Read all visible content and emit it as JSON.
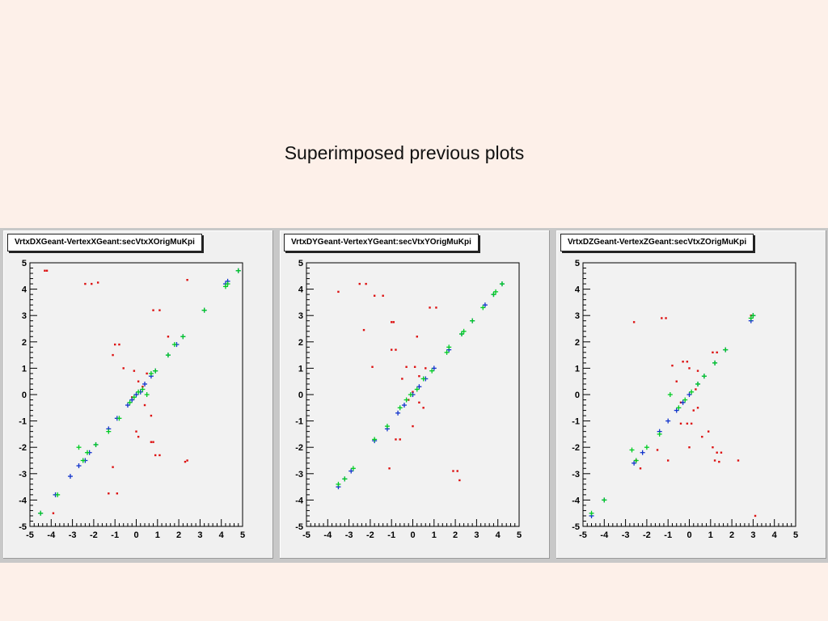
{
  "slide": {
    "title": "Superimposed previous plots"
  },
  "colors": {
    "background": "#fdf0e9",
    "frame": "#f2f2f2",
    "red": "#dd1111",
    "green": "#00cc22",
    "blue": "#1133cc"
  },
  "chart_data": [
    {
      "type": "scatter",
      "title": "VrtxDXGeant-VertexXGeant:secVtxXOrigMuKpi",
      "xlim": [
        -5,
        5
      ],
      "ylim": [
        -5,
        5
      ],
      "x_ticks": [
        -5,
        -4,
        -3,
        -2,
        -1,
        0,
        1,
        2,
        3,
        4,
        5
      ],
      "y_ticks": [
        -5,
        -4,
        -3,
        -2,
        -1,
        0,
        1,
        2,
        3,
        4,
        5
      ],
      "series": [
        {
          "color": "red",
          "points": [
            [
              -4.3,
              4.7
            ],
            [
              -4.2,
              4.7
            ],
            [
              -2.4,
              4.2
            ],
            [
              -2.1,
              4.2
            ],
            [
              -1.8,
              4.25
            ],
            [
              2.4,
              4.35
            ],
            [
              0.8,
              3.2
            ],
            [
              1.1,
              3.2
            ],
            [
              -1.0,
              1.9
            ],
            [
              -0.8,
              1.9
            ],
            [
              1.5,
              2.2
            ],
            [
              -1.1,
              1.5
            ],
            [
              -0.6,
              1.0
            ],
            [
              -0.1,
              0.9
            ],
            [
              0.5,
              0.8
            ],
            [
              0.1,
              0.5
            ],
            [
              0.3,
              0.3
            ],
            [
              -0.2,
              -0.1
            ],
            [
              0.4,
              -0.4
            ],
            [
              0.7,
              -0.8
            ],
            [
              0.0,
              -1.4
            ],
            [
              0.1,
              -1.6
            ],
            [
              0.7,
              -1.8
            ],
            [
              0.8,
              -1.8
            ],
            [
              0.9,
              -2.3
            ],
            [
              1.1,
              -2.3
            ],
            [
              2.3,
              -2.55
            ],
            [
              2.4,
              -2.5
            ],
            [
              -1.1,
              -2.75
            ],
            [
              -1.3,
              -3.75
            ],
            [
              -0.9,
              -3.75
            ],
            [
              -3.9,
              -4.5
            ]
          ]
        },
        {
          "color": "blue",
          "points": [
            [
              -4.5,
              -4.5
            ],
            [
              -3.8,
              -3.8
            ],
            [
              -3.1,
              -3.1
            ],
            [
              -2.7,
              -2.7
            ],
            [
              -2.4,
              -2.5
            ],
            [
              -2.2,
              -2.2
            ],
            [
              -1.9,
              -1.9
            ],
            [
              -1.3,
              -1.3
            ],
            [
              -0.9,
              -0.9
            ],
            [
              -0.4,
              -0.4
            ],
            [
              -0.2,
              -0.2
            ],
            [
              0.0,
              0.0
            ],
            [
              0.2,
              0.1
            ],
            [
              0.4,
              0.4
            ],
            [
              0.7,
              0.7
            ],
            [
              0.9,
              0.9
            ],
            [
              1.5,
              1.5
            ],
            [
              1.9,
              1.9
            ],
            [
              2.2,
              2.2
            ],
            [
              3.2,
              3.2
            ],
            [
              4.2,
              4.2
            ],
            [
              4.3,
              4.3
            ],
            [
              4.8,
              4.7
            ]
          ]
        },
        {
          "color": "green",
          "points": [
            [
              -4.5,
              -4.5
            ],
            [
              -3.7,
              -3.8
            ],
            [
              -2.7,
              -2.0
            ],
            [
              -2.5,
              -2.5
            ],
            [
              -2.3,
              -2.2
            ],
            [
              -1.9,
              -1.9
            ],
            [
              -1.3,
              -1.4
            ],
            [
              -0.8,
              -0.9
            ],
            [
              -0.3,
              -0.3
            ],
            [
              -0.1,
              -0.1
            ],
            [
              0.1,
              0.1
            ],
            [
              0.3,
              0.2
            ],
            [
              0.5,
              0.0
            ],
            [
              0.7,
              0.8
            ],
            [
              0.9,
              0.9
            ],
            [
              1.5,
              1.5
            ],
            [
              1.8,
              1.9
            ],
            [
              2.2,
              2.2
            ],
            [
              3.2,
              3.2
            ],
            [
              4.2,
              4.1
            ],
            [
              4.3,
              4.2
            ],
            [
              4.8,
              4.7
            ]
          ]
        }
      ]
    },
    {
      "type": "scatter",
      "title": "VrtxDYGeant-VertexYGeant:secVtxYOrigMuKpi",
      "xlim": [
        -5,
        5
      ],
      "ylim": [
        -5,
        5
      ],
      "x_ticks": [
        -5,
        -4,
        -3,
        -2,
        -1,
        0,
        1,
        2,
        3,
        4,
        5
      ],
      "y_ticks": [
        -5,
        -4,
        -3,
        -2,
        -1,
        0,
        1,
        2,
        3,
        4,
        5
      ],
      "series": [
        {
          "color": "red",
          "points": [
            [
              -3.5,
              3.9
            ],
            [
              -2.5,
              4.2
            ],
            [
              -2.2,
              4.2
            ],
            [
              -1.8,
              3.75
            ],
            [
              -1.4,
              3.75
            ],
            [
              -1.0,
              2.75
            ],
            [
              -0.9,
              2.75
            ],
            [
              -1.0,
              1.7
            ],
            [
              -0.8,
              1.7
            ],
            [
              0.8,
              3.3
            ],
            [
              1.1,
              3.3
            ],
            [
              0.2,
              2.2
            ],
            [
              -1.9,
              1.05
            ],
            [
              -0.3,
              1.05
            ],
            [
              0.1,
              1.05
            ],
            [
              0.6,
              1.0
            ],
            [
              0.3,
              0.7
            ],
            [
              -0.5,
              0.6
            ],
            [
              0.0,
              0.1
            ],
            [
              -0.2,
              -0.2
            ],
            [
              0.3,
              -0.3
            ],
            [
              0.5,
              -0.5
            ],
            [
              -0.8,
              -1.7
            ],
            [
              -0.6,
              -1.7
            ],
            [
              0.0,
              -1.2
            ],
            [
              -1.1,
              -2.8
            ],
            [
              1.9,
              -2.9
            ],
            [
              2.1,
              -2.9
            ],
            [
              2.2,
              -3.25
            ],
            [
              -2.3,
              2.45
            ]
          ]
        },
        {
          "color": "blue",
          "points": [
            [
              -3.5,
              -3.5
            ],
            [
              -3.2,
              -3.2
            ],
            [
              -2.9,
              -2.9
            ],
            [
              -1.8,
              -1.75
            ],
            [
              -1.2,
              -1.3
            ],
            [
              -0.7,
              -0.7
            ],
            [
              -0.4,
              -0.4
            ],
            [
              0.0,
              0.0
            ],
            [
              0.3,
              0.3
            ],
            [
              0.6,
              0.6
            ],
            [
              1.0,
              1.0
            ],
            [
              1.7,
              1.7
            ],
            [
              2.3,
              2.3
            ],
            [
              2.8,
              2.8
            ],
            [
              3.4,
              3.4
            ],
            [
              3.8,
              3.8
            ],
            [
              4.2,
              4.2
            ]
          ]
        },
        {
          "color": "green",
          "points": [
            [
              -3.5,
              -3.4
            ],
            [
              -3.2,
              -3.2
            ],
            [
              -2.8,
              -2.8
            ],
            [
              -1.8,
              -1.7
            ],
            [
              -1.2,
              -1.2
            ],
            [
              -0.6,
              -0.5
            ],
            [
              -0.3,
              -0.2
            ],
            [
              -0.1,
              0.0
            ],
            [
              0.2,
              0.2
            ],
            [
              0.5,
              0.6
            ],
            [
              0.9,
              0.9
            ],
            [
              1.6,
              1.6
            ],
            [
              1.7,
              1.8
            ],
            [
              2.3,
              2.3
            ],
            [
              2.4,
              2.4
            ],
            [
              2.8,
              2.8
            ],
            [
              3.3,
              3.3
            ],
            [
              3.8,
              3.8
            ],
            [
              3.9,
              3.9
            ],
            [
              4.2,
              4.2
            ]
          ]
        }
      ]
    },
    {
      "type": "scatter",
      "title": "VrtxDZGeant-VertexZGeant:secVtxZOrigMuKpi",
      "xlim": [
        -5,
        5
      ],
      "ylim": [
        -5,
        5
      ],
      "x_ticks": [
        -5,
        -4,
        -3,
        -2,
        -1,
        0,
        1,
        2,
        3,
        4,
        5
      ],
      "y_ticks": [
        -5,
        -4,
        -3,
        -2,
        -1,
        0,
        1,
        2,
        3,
        4,
        5
      ],
      "series": [
        {
          "color": "red",
          "points": [
            [
              -2.6,
              2.75
            ],
            [
              -1.3,
              2.9
            ],
            [
              -1.1,
              2.9
            ],
            [
              -0.8,
              1.1
            ],
            [
              -0.3,
              1.25
            ],
            [
              -0.1,
              1.25
            ],
            [
              0.0,
              1.0
            ],
            [
              0.4,
              0.9
            ],
            [
              -0.6,
              0.5
            ],
            [
              0.3,
              0.2
            ],
            [
              -0.4,
              -0.3
            ],
            [
              0.4,
              -0.5
            ],
            [
              0.2,
              -0.6
            ],
            [
              -0.4,
              -1.1
            ],
            [
              -0.1,
              -1.1
            ],
            [
              0.1,
              -1.1
            ],
            [
              0.6,
              -1.6
            ],
            [
              0.9,
              -1.4
            ],
            [
              0.0,
              -2.0
            ],
            [
              -1.5,
              -2.1
            ],
            [
              1.1,
              -2.0
            ],
            [
              1.3,
              -2.2
            ],
            [
              1.5,
              -2.2
            ],
            [
              2.3,
              -2.5
            ],
            [
              1.2,
              -2.5
            ],
            [
              1.4,
              -2.55
            ],
            [
              -2.3,
              -2.8
            ],
            [
              -2.5,
              -2.5
            ],
            [
              -1.0,
              -2.5
            ],
            [
              2.9,
              3.0
            ],
            [
              3.1,
              -4.6
            ],
            [
              1.1,
              1.6
            ],
            [
              1.3,
              1.6
            ]
          ]
        },
        {
          "color": "blue",
          "points": [
            [
              -4.6,
              -4.6
            ],
            [
              -4.0,
              -4.0
            ],
            [
              -2.6,
              -2.6
            ],
            [
              -2.2,
              -2.2
            ],
            [
              -1.4,
              -1.4
            ],
            [
              -1.0,
              -1.0
            ],
            [
              -0.6,
              -0.6
            ],
            [
              -0.3,
              -0.3
            ],
            [
              0.0,
              0.0
            ],
            [
              0.4,
              0.4
            ],
            [
              0.7,
              0.7
            ],
            [
              1.2,
              1.2
            ],
            [
              1.7,
              1.7
            ],
            [
              2.9,
              2.8
            ],
            [
              3.0,
              3.0
            ]
          ]
        },
        {
          "color": "green",
          "points": [
            [
              -4.6,
              -4.5
            ],
            [
              -4.0,
              -4.0
            ],
            [
              -2.7,
              -2.1
            ],
            [
              -2.5,
              -2.5
            ],
            [
              -2.0,
              -2.0
            ],
            [
              -1.4,
              -1.5
            ],
            [
              -0.9,
              0.0
            ],
            [
              -0.5,
              -0.5
            ],
            [
              -0.2,
              -0.2
            ],
            [
              0.1,
              0.1
            ],
            [
              0.4,
              0.4
            ],
            [
              0.7,
              0.7
            ],
            [
              1.2,
              1.2
            ],
            [
              1.7,
              1.7
            ],
            [
              2.9,
              2.9
            ],
            [
              3.0,
              3.0
            ]
          ]
        }
      ]
    }
  ]
}
